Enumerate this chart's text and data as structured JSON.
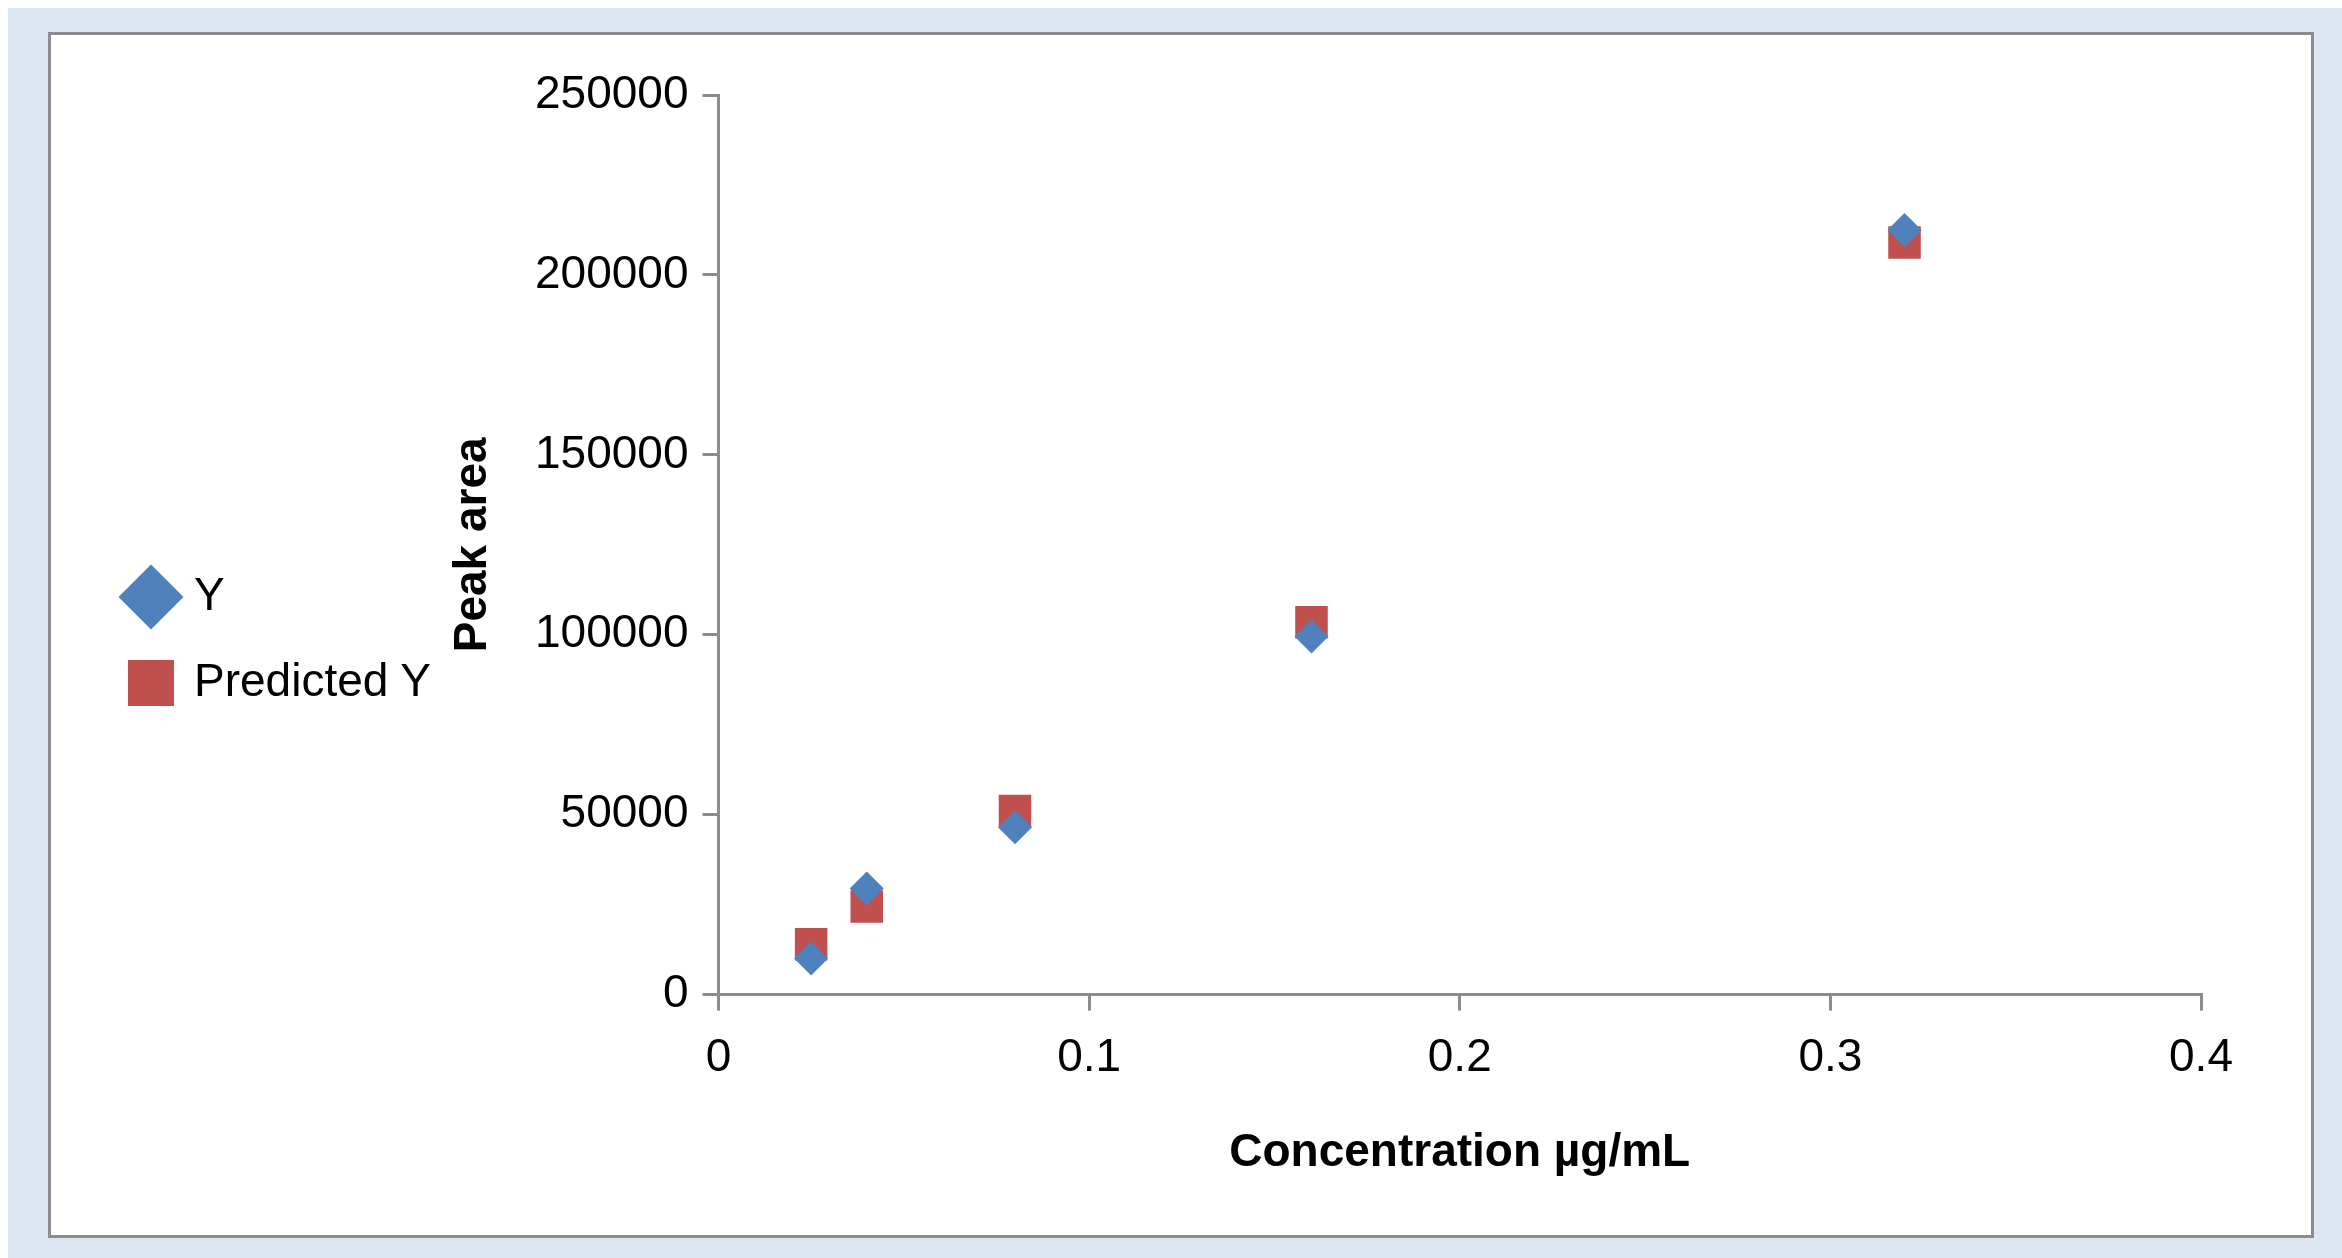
{
  "chart_data": {
    "type": "scatter",
    "xlabel": "Concentration µg/mL",
    "ylabel": "Peak area",
    "xlim": [
      0,
      0.4
    ],
    "xticks": [
      0,
      0.1,
      0.2,
      0.3,
      0.4
    ],
    "ylim": [
      0,
      250000
    ],
    "yticks": [
      0,
      50000,
      100000,
      150000,
      200000,
      250000
    ],
    "grid": false,
    "legend": "left",
    "series": [
      {
        "name": "Y",
        "color": "#4f81bd",
        "marker": "diamond",
        "x": [
          0.025,
          0.04,
          0.08,
          0.16,
          0.32
        ],
        "values": [
          10000,
          29500,
          46500,
          99500,
          212500
        ]
      },
      {
        "name": "Predicted Y",
        "color": "#c0504d",
        "marker": "square",
        "x": [
          0.025,
          0.04,
          0.08,
          0.16,
          0.32
        ],
        "values": [
          14000,
          24500,
          51000,
          103500,
          209000
        ]
      }
    ]
  }
}
